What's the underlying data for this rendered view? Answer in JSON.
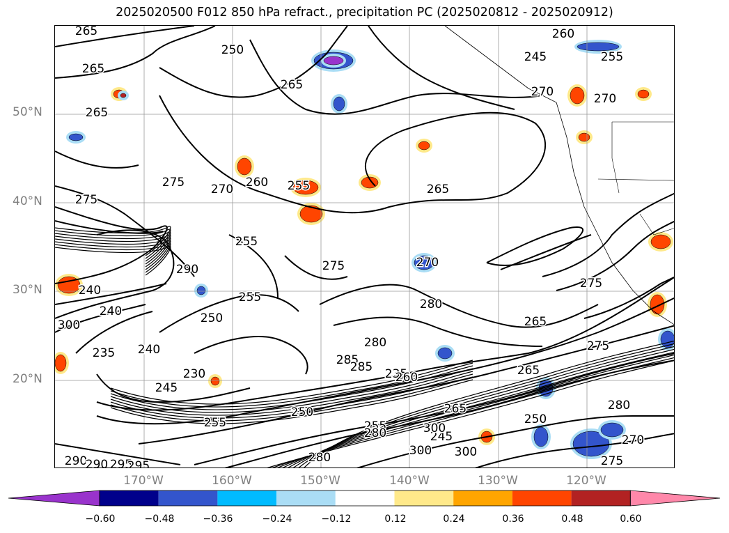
{
  "figure": {
    "title": "2025020500 F012 850 hPa refract., precipitation PC (2025020812 - 2025020912)"
  },
  "map": {
    "projection": "plate-carree",
    "lon_range": [
      -180,
      -110
    ],
    "lat_range": [
      10,
      60
    ],
    "gridlines": true,
    "coastlines": true,
    "borders": true,
    "lat_labels": [
      "50°N",
      "40°N",
      "30°N",
      "20°N"
    ],
    "lon_labels": [
      "170°W",
      "160°W",
      "150°W",
      "140°W",
      "130°W",
      "120°W"
    ],
    "contour_field": "850 hPa refractivity",
    "contour_labels": [
      "265",
      "260",
      "250",
      "245",
      "255",
      "265",
      "270",
      "270",
      "265",
      "265",
      "275",
      "275",
      "270",
      "260",
      "255",
      "265",
      "255",
      "275",
      "270",
      "240",
      "280",
      "275",
      "285",
      "240",
      "290",
      "235",
      "265",
      "280",
      "275",
      "300",
      "265",
      "255",
      "250",
      "240",
      "245",
      "235",
      "230",
      "280",
      "285",
      "255",
      "260",
      "265",
      "245",
      "250",
      "280",
      "250",
      "300",
      "300",
      "275",
      "270",
      "300",
      "290",
      "295",
      "290",
      "295",
      "280",
      "255"
    ],
    "shaded_field": "precipitation PC"
  },
  "colorbar": {
    "extend": "both",
    "tick_labels": [
      "−0.60",
      "−0.48",
      "−0.36",
      "−0.24",
      "−0.12",
      "0.12",
      "0.24",
      "0.36",
      "0.48",
      "0.60"
    ],
    "colors": [
      "#9933cc",
      "#00008b",
      "#3355cc",
      "#00bbff",
      "#aaddf5",
      "#ffffff",
      "#ffe98a",
      "#ffa500",
      "#ff4500",
      "#b22222",
      "#ff88aa"
    ]
  }
}
